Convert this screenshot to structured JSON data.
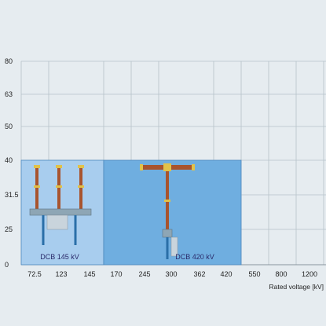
{
  "chart_data": {
    "type": "bar",
    "categories": [
      "72.5",
      "123",
      "145",
      "170",
      "245",
      "300",
      "362",
      "420",
      "550",
      "800",
      "1200"
    ],
    "y_ticks": [
      "0",
      "25",
      "31.5",
      "40",
      "50",
      "63",
      "80"
    ],
    "xlabel": "Rated voltage [kV]",
    "ylabel": "",
    "grid": true,
    "regions": [
      {
        "name": "DCB 145 kV",
        "x_start": "72.5",
        "x_end": "145",
        "y_max": 40,
        "color": "#a8cdee",
        "image": "dcb-145kv-breaker-icon"
      },
      {
        "name": "DCB 420 kV",
        "x_start": "170",
        "x_end": "420",
        "y_max": 40,
        "color": "#6faee0",
        "image": "dcb-420kv-breaker-icon"
      }
    ]
  }
}
